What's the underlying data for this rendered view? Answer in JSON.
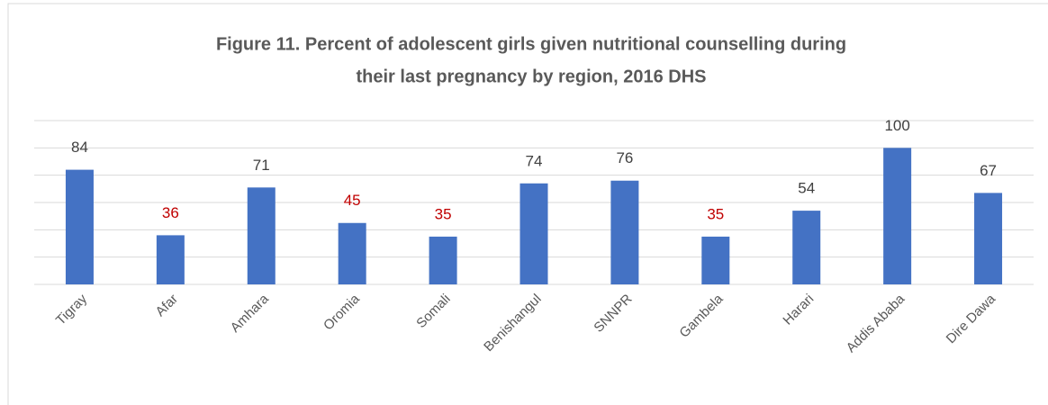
{
  "chart_data": {
    "type": "bar",
    "title": [
      "Figure 11. Percent of adolescent girls given nutritional counselling during",
      "their last pregnancy by region, 2016 DHS"
    ],
    "categories": [
      "Tigray",
      "Afar",
      "Amhara",
      "Oromia",
      "Somali",
      "Benishangul",
      "SNNPR",
      "Gambela",
      "Harari",
      "Addis Ababa",
      "Dire Dawa"
    ],
    "values": [
      84,
      36,
      71,
      45,
      35,
      74,
      76,
      35,
      54,
      100,
      67
    ],
    "color": "#4472c4",
    "label_colors": [
      "#404040",
      "#c00000",
      "#404040",
      "#c00000",
      "#c00000",
      "#404040",
      "#404040",
      "#c00000",
      "#404040",
      "#404040",
      "#404040"
    ],
    "ylim": [
      0,
      120
    ],
    "yticks": [
      0,
      20,
      40,
      60,
      80,
      100,
      120
    ],
    "grid": true
  }
}
